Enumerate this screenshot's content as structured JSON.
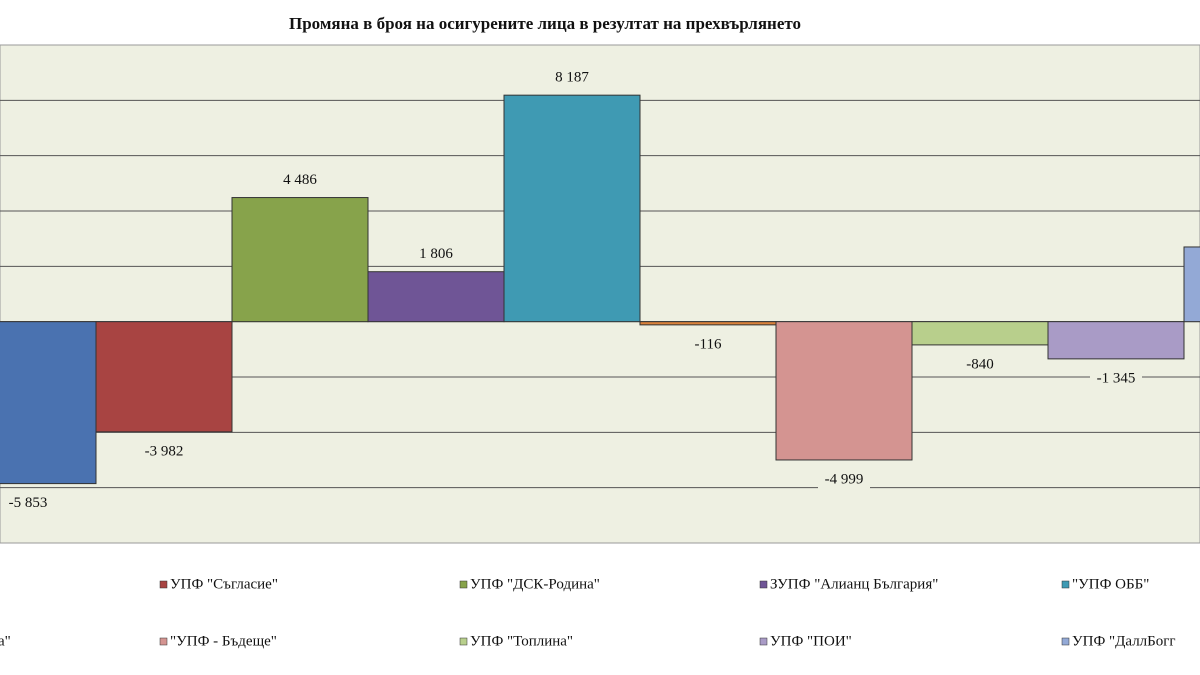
{
  "chart_data": {
    "type": "bar",
    "title": "Промяна в броя на осигурените лица в резултат на прехвърлянето",
    "categories": [
      null,
      "УПФ \"Съгласие\"",
      "УПФ \"ДСК-Родина\"",
      "ЗУПФ \"Алианц България\"",
      "\"УПФ ОББ\"",
      "на\"",
      "\"УПФ - Бъдеще\"",
      "УПФ \"Топлина\"",
      "УПФ \"ПОИ\"",
      "УПФ \"ДаллБогг"
    ],
    "values": [
      -5853,
      -3982,
      4486,
      1806,
      8187,
      -116,
      -4999,
      -840,
      -1345,
      2700
    ],
    "value_labels": [
      "-5 853",
      "-3 982",
      "4 486",
      "1 806",
      "8 187",
      "-116",
      "-4 999",
      "-840",
      "-1 345",
      null
    ],
    "colors": [
      "#4a72b0",
      "#a84442",
      "#87a34b",
      "#6f5596",
      "#3f9ab3",
      "#d9823b",
      "#d49491",
      "#b8cf8c",
      "#a99bc6",
      "#93a9d6"
    ],
    "ylim": [
      -8000,
      10000
    ],
    "yticks": [
      -6000,
      -4000,
      -2000,
      0,
      2000,
      4000,
      6000,
      8000
    ],
    "grid": true
  }
}
